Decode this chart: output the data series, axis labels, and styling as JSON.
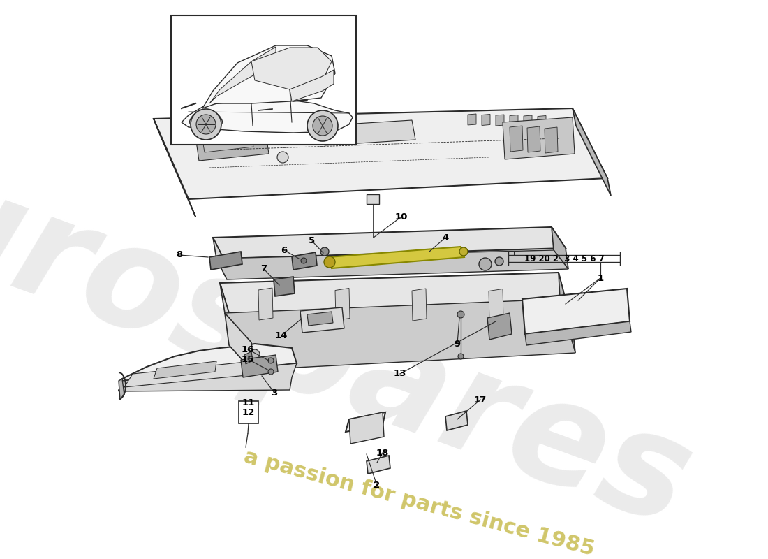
{
  "background_color": "#ffffff",
  "line_color": "#2a2a2a",
  "fill_light": "#efefef",
  "fill_medium": "#d8d8d8",
  "fill_dark": "#b8b8b8",
  "fill_white": "#f8f8f8",
  "highlight_yellow": "#d4c840",
  "wm1": "eurospares",
  "wm1_color": "#cccccc",
  "wm1_alpha": 0.38,
  "wm2": "a passion for parts since 1985",
  "wm2_color": "#c8bc50",
  "wm2_alpha": 0.85,
  "label_bracket": "19 20 2  3 4 5 6 7",
  "fig_width": 11.0,
  "fig_height": 8.0,
  "dpi": 100
}
